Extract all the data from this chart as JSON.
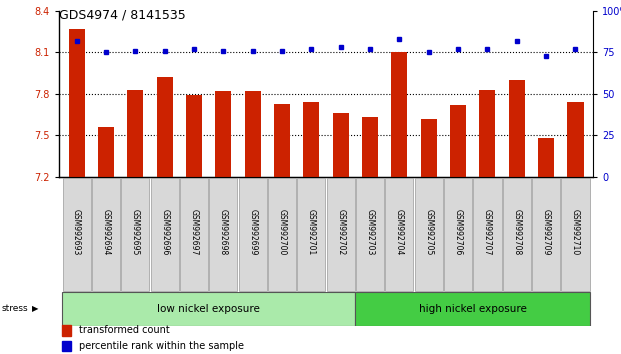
{
  "title": "GDS4974 / 8141535",
  "samples": [
    "GSM992693",
    "GSM992694",
    "GSM992695",
    "GSM992696",
    "GSM992697",
    "GSM992698",
    "GSM992699",
    "GSM992700",
    "GSM992701",
    "GSM992702",
    "GSM992703",
    "GSM992704",
    "GSM992705",
    "GSM992706",
    "GSM992707",
    "GSM992708",
    "GSM992709",
    "GSM992710"
  ],
  "bar_values": [
    8.27,
    7.56,
    7.83,
    7.92,
    7.79,
    7.82,
    7.82,
    7.73,
    7.74,
    7.66,
    7.63,
    8.1,
    7.62,
    7.72,
    7.83,
    7.9,
    7.48,
    7.74
  ],
  "dot_values": [
    82,
    75,
    76,
    76,
    77,
    76,
    76,
    76,
    77,
    78,
    77,
    83,
    75,
    77,
    77,
    82,
    73,
    77
  ],
  "ylim_left": [
    7.2,
    8.4
  ],
  "ylim_right": [
    0,
    100
  ],
  "bar_color": "#cc2200",
  "dot_color": "#0000cc",
  "group1_label": "low nickel exposure",
  "group2_label": "high nickel exposure",
  "group1_count": 10,
  "stress_label": "stress",
  "legend1": "transformed count",
  "legend2": "percentile rank within the sample",
  "group1_color": "#aaeaaa",
  "group2_color": "#44cc44",
  "yticks_left": [
    7.2,
    7.5,
    7.8,
    8.1,
    8.4
  ],
  "yticks_right": [
    0,
    25,
    50,
    75,
    100
  ],
  "hlines": [
    7.5,
    7.8,
    8.1
  ],
  "title_fontsize": 9,
  "axis_label_fontsize": 7,
  "tick_label_fontsize": 5.5,
  "legend_fontsize": 7,
  "group_fontsize": 7.5,
  "bar_width": 0.55
}
